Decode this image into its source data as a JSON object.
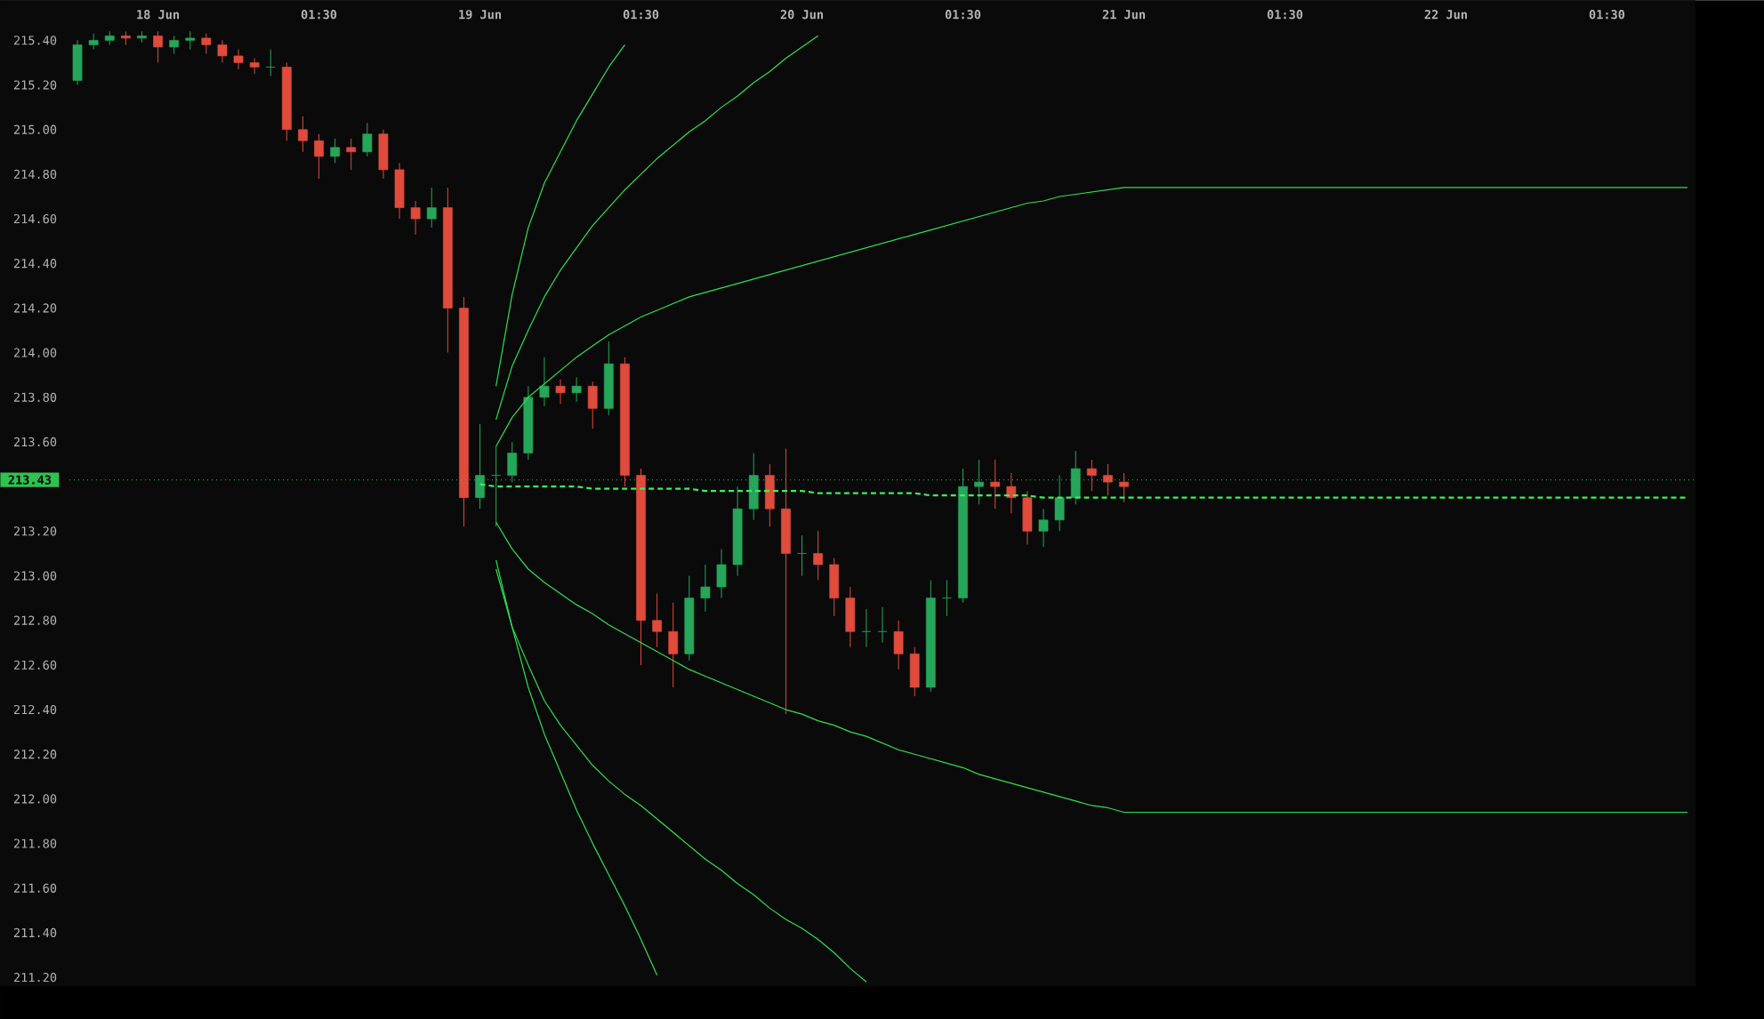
{
  "chart_data": {
    "type": "candlestick",
    "categories": [
      null,
      null,
      null,
      null,
      null,
      "18 Jun",
      null,
      null,
      null,
      null,
      null,
      null,
      null,
      null,
      null,
      "01:30",
      null,
      null,
      null,
      null,
      null,
      null,
      null,
      null,
      null,
      "19 Jun",
      null,
      null,
      null,
      null,
      null,
      null,
      null,
      null,
      null,
      "01:30",
      null,
      null,
      null,
      null,
      null,
      null,
      null,
      null,
      null,
      "20 Jun",
      null,
      null,
      null,
      null,
      null,
      null,
      null,
      null,
      null,
      "01:30",
      null,
      null,
      null,
      null,
      null,
      null,
      null,
      null,
      null,
      "21 Jun",
      null,
      null,
      null,
      null,
      null,
      null,
      null,
      null,
      null,
      "01:30",
      null,
      null,
      null,
      null,
      null,
      null,
      null,
      null,
      null,
      "22 Jun",
      null,
      null,
      null,
      null,
      null,
      null,
      null,
      null,
      null,
      "01:30",
      null,
      null,
      null,
      null,
      null
    ],
    "ohlc": [
      [
        215.22,
        215.4,
        215.2,
        215.38
      ],
      [
        215.38,
        215.43,
        215.36,
        215.4
      ],
      [
        215.4,
        215.44,
        215.38,
        215.42
      ],
      [
        215.42,
        215.44,
        215.38,
        215.41
      ],
      [
        215.41,
        215.44,
        215.39,
        215.42
      ],
      [
        215.42,
        215.44,
        215.3,
        215.37
      ],
      [
        215.37,
        215.42,
        215.34,
        215.4
      ],
      [
        215.4,
        215.44,
        215.36,
        215.41
      ],
      [
        215.41,
        215.43,
        215.34,
        215.38
      ],
      [
        215.38,
        215.4,
        215.3,
        215.33
      ],
      [
        215.33,
        215.36,
        215.27,
        215.3
      ],
      [
        215.3,
        215.32,
        215.25,
        215.28
      ],
      [
        215.28,
        215.36,
        215.24,
        215.28
      ],
      [
        215.28,
        215.3,
        214.95,
        215.0
      ],
      [
        215.0,
        215.06,
        214.9,
        214.95
      ],
      [
        214.95,
        214.98,
        214.78,
        214.88
      ],
      [
        214.88,
        214.96,
        214.85,
        214.92
      ],
      [
        214.92,
        214.96,
        214.82,
        214.9
      ],
      [
        214.9,
        215.03,
        214.88,
        214.98
      ],
      [
        214.98,
        215.0,
        214.78,
        214.82
      ],
      [
        214.82,
        214.85,
        214.6,
        214.65
      ],
      [
        214.65,
        214.68,
        214.53,
        214.6
      ],
      [
        214.6,
        214.74,
        214.56,
        214.65
      ],
      [
        214.65,
        214.74,
        214.0,
        214.2
      ],
      [
        214.2,
        214.25,
        213.22,
        213.35
      ],
      [
        213.35,
        213.68,
        213.3,
        213.45
      ],
      [
        213.45,
        213.58,
        213.22,
        213.45
      ],
      [
        213.45,
        213.6,
        213.42,
        213.55
      ],
      [
        213.55,
        213.85,
        213.52,
        213.8
      ],
      [
        213.8,
        213.98,
        213.76,
        213.85
      ],
      [
        213.85,
        213.88,
        213.77,
        213.82
      ],
      [
        213.82,
        213.89,
        213.78,
        213.85
      ],
      [
        213.85,
        213.87,
        213.66,
        213.75
      ],
      [
        213.75,
        214.05,
        213.72,
        213.95
      ],
      [
        213.95,
        213.98,
        213.4,
        213.45
      ],
      [
        213.45,
        213.48,
        212.6,
        212.8
      ],
      [
        212.8,
        212.92,
        212.68,
        212.75
      ],
      [
        212.75,
        212.88,
        212.5,
        212.65
      ],
      [
        212.65,
        213.0,
        212.62,
        212.9
      ],
      [
        212.9,
        213.05,
        212.84,
        212.95
      ],
      [
        212.95,
        213.12,
        212.9,
        213.05
      ],
      [
        213.05,
        213.4,
        213.0,
        213.3
      ],
      [
        213.3,
        213.55,
        213.25,
        213.45
      ],
      [
        213.45,
        213.5,
        213.22,
        213.3
      ],
      [
        213.3,
        213.57,
        212.38,
        213.1
      ],
      [
        213.1,
        213.18,
        213.0,
        213.1
      ],
      [
        213.1,
        213.2,
        212.98,
        213.05
      ],
      [
        213.05,
        213.08,
        212.82,
        212.9
      ],
      [
        212.9,
        212.95,
        212.68,
        212.75
      ],
      [
        212.75,
        212.85,
        212.68,
        212.75
      ],
      [
        212.75,
        212.86,
        212.7,
        212.75
      ],
      [
        212.75,
        212.8,
        212.58,
        212.65
      ],
      [
        212.65,
        212.68,
        212.46,
        212.5
      ],
      [
        212.5,
        212.98,
        212.48,
        212.9
      ],
      [
        212.9,
        212.98,
        212.82,
        212.9
      ],
      [
        212.9,
        213.48,
        212.88,
        213.4
      ],
      [
        213.4,
        213.52,
        213.32,
        213.42
      ],
      [
        213.42,
        213.52,
        213.3,
        213.4
      ],
      [
        213.4,
        213.46,
        213.28,
        213.35
      ],
      [
        213.35,
        213.38,
        213.14,
        213.2
      ],
      [
        213.2,
        213.3,
        213.13,
        213.25
      ],
      [
        213.25,
        213.45,
        213.2,
        213.35
      ],
      [
        213.35,
        213.56,
        213.32,
        213.48
      ],
      [
        213.48,
        213.52,
        213.38,
        213.45
      ],
      [
        213.45,
        213.5,
        213.36,
        213.42
      ],
      [
        213.42,
        213.46,
        213.33,
        213.4
      ],
      null,
      null,
      null,
      null,
      null,
      null,
      null,
      null,
      null,
      null,
      null,
      null,
      null,
      null,
      null,
      null,
      null,
      null,
      null,
      null,
      null,
      null,
      null,
      null,
      null,
      null,
      null,
      null,
      null,
      null,
      null,
      null,
      null,
      null,
      null
    ],
    "colors": [
      "#26a65b",
      "#26a65b",
      "#26a65b",
      "#e04b3c",
      "#26a65b",
      "#e04b3c",
      "#26a65b",
      "#26a65b",
      "#e04b3c",
      "#e04b3c",
      "#e04b3c",
      "#e04b3c",
      "#26a65b",
      "#e04b3c",
      "#e04b3c",
      "#e04b3c",
      "#26a65b",
      "#e04b3c",
      "#26a65b",
      "#e04b3c",
      "#e04b3c",
      "#e04b3c",
      "#26a65b",
      "#e04b3c",
      "#e04b3c",
      "#26a65b",
      "#26a65b",
      "#26a65b",
      "#26a65b",
      "#26a65b",
      "#e04b3c",
      "#26a65b",
      "#e04b3c",
      "#26a65b",
      "#e04b3c",
      "#e04b3c",
      "#e04b3c",
      "#e04b3c",
      "#26a65b",
      "#26a65b",
      "#26a65b",
      "#26a65b",
      "#26a65b",
      "#e04b3c",
      "#e04b3c",
      "#26a65b",
      "#e04b3c",
      "#e04b3c",
      "#e04b3c",
      "#26a65b",
      "#26a65b",
      "#e04b3c",
      "#e04b3c",
      "#26a65b",
      "#26a65b",
      "#26a65b",
      "#26a65b",
      "#e04b3c",
      "#e04b3c",
      "#e04b3c",
      "#26a65b",
      "#26a65b",
      "#26a65b",
      "#e04b3c",
      "#e04b3c",
      "#e04b3c",
      null,
      null,
      null,
      null,
      null,
      null,
      null,
      null,
      null,
      null,
      null,
      null,
      null,
      null,
      null,
      null,
      null,
      null,
      null,
      null,
      null,
      null,
      null,
      null,
      null,
      null,
      null,
      null,
      null,
      null,
      null,
      null,
      null,
      null,
      null
    ],
    "series": [
      {
        "type": "line",
        "color": "#2fe04f",
        "line_style": "solid",
        "values": [
          null,
          null,
          null,
          null,
          null,
          null,
          null,
          null,
          null,
          null,
          null,
          null,
          null,
          null,
          null,
          null,
          null,
          null,
          null,
          null,
          null,
          null,
          null,
          null,
          null,
          null,
          213.85,
          214.26,
          214.56,
          214.76,
          214.9,
          215.04,
          215.16,
          215.28,
          215.38,
          null,
          null,
          null,
          null,
          null,
          null,
          null,
          null,
          null,
          null,
          null,
          null,
          null,
          null,
          null,
          null,
          null,
          null,
          null,
          null,
          null,
          null,
          null,
          null,
          null,
          null,
          null,
          null,
          null,
          null,
          null,
          null,
          null,
          null,
          null,
          null,
          null,
          null,
          null,
          null,
          null,
          null,
          null,
          null,
          null,
          null,
          null,
          null,
          null,
          null,
          null,
          null,
          null,
          null,
          null,
          null,
          null,
          null,
          null,
          null,
          null,
          null,
          null,
          null,
          null,
          null
        ]
      },
      {
        "type": "line",
        "color": "#2fe04f",
        "line_style": "solid",
        "values": [
          null,
          null,
          null,
          null,
          null,
          null,
          null,
          null,
          null,
          null,
          null,
          null,
          null,
          null,
          null,
          null,
          null,
          null,
          null,
          null,
          null,
          null,
          null,
          null,
          null,
          null,
          213.7,
          213.94,
          214.1,
          214.25,
          214.37,
          214.47,
          214.57,
          214.65,
          214.73,
          214.8,
          214.87,
          214.93,
          214.99,
          215.04,
          215.1,
          215.15,
          215.21,
          215.26,
          215.32,
          215.37,
          215.42,
          null,
          null,
          null,
          null,
          null,
          null,
          null,
          null,
          null,
          null,
          null,
          null,
          null,
          null,
          null,
          null,
          null,
          null,
          null,
          null,
          null,
          null,
          null,
          null,
          null,
          null,
          null,
          null,
          null,
          null,
          null,
          null,
          null,
          null,
          null,
          null,
          null,
          null,
          null,
          null,
          null,
          null,
          null,
          null,
          null,
          null,
          null,
          null,
          null,
          null,
          null,
          null,
          null,
          null
        ]
      },
      {
        "type": "line",
        "color": "#2fe04f",
        "line_style": "solid",
        "values": [
          null,
          null,
          null,
          null,
          null,
          null,
          null,
          null,
          null,
          null,
          null,
          null,
          null,
          null,
          null,
          null,
          null,
          null,
          null,
          null,
          null,
          null,
          null,
          null,
          null,
          null,
          213.58,
          213.71,
          213.8,
          213.86,
          213.92,
          213.98,
          214.03,
          214.08,
          214.12,
          214.16,
          214.19,
          214.22,
          214.25,
          214.27,
          214.29,
          214.31,
          214.33,
          214.35,
          214.37,
          214.39,
          214.41,
          214.43,
          214.45,
          214.47,
          214.49,
          214.51,
          214.53,
          214.55,
          214.57,
          214.59,
          214.61,
          214.63,
          214.65,
          214.67,
          214.68,
          214.7,
          214.71,
          214.72,
          214.73,
          214.74,
          214.74,
          214.74,
          214.74,
          214.74,
          214.74,
          214.74,
          214.74,
          214.74,
          214.74,
          214.74,
          214.74,
          214.74,
          214.74,
          214.74,
          214.74,
          214.74,
          214.74,
          214.74,
          214.74,
          214.74,
          214.74,
          214.74,
          214.74,
          214.74,
          214.74,
          214.74,
          214.74,
          214.74,
          214.74,
          214.74,
          214.74,
          214.74,
          214.74,
          214.74,
          214.74
        ]
      },
      {
        "type": "line",
        "color": "#2fe04f",
        "line_style": "solid",
        "values": [
          null,
          null,
          null,
          null,
          null,
          null,
          null,
          null,
          null,
          null,
          null,
          null,
          null,
          null,
          null,
          null,
          null,
          null,
          null,
          null,
          null,
          null,
          null,
          null,
          null,
          null,
          213.24,
          213.12,
          213.03,
          212.97,
          212.92,
          212.87,
          212.83,
          212.78,
          212.74,
          212.7,
          212.66,
          212.62,
          212.58,
          212.55,
          212.52,
          212.49,
          212.46,
          212.43,
          212.4,
          212.38,
          212.35,
          212.33,
          212.3,
          212.28,
          212.25,
          212.22,
          212.2,
          212.18,
          212.16,
          212.14,
          212.11,
          212.09,
          212.07,
          212.05,
          212.03,
          212.01,
          211.99,
          211.97,
          211.96,
          211.94,
          211.94,
          211.94,
          211.94,
          211.94,
          211.94,
          211.94,
          211.94,
          211.94,
          211.94,
          211.94,
          211.94,
          211.94,
          211.94,
          211.94,
          211.94,
          211.94,
          211.94,
          211.94,
          211.94,
          211.94,
          211.94,
          211.94,
          211.94,
          211.94,
          211.94,
          211.94,
          211.94,
          211.94,
          211.94,
          211.94,
          211.94,
          211.94,
          211.94,
          211.94,
          211.94
        ]
      },
      {
        "type": "line",
        "color": "#2fe04f",
        "line_style": "solid",
        "values": [
          null,
          null,
          null,
          null,
          null,
          null,
          null,
          null,
          null,
          null,
          null,
          null,
          null,
          null,
          null,
          null,
          null,
          null,
          null,
          null,
          null,
          null,
          null,
          null,
          null,
          null,
          213.07,
          212.77,
          212.6,
          212.44,
          212.33,
          212.24,
          212.15,
          212.08,
          212.02,
          211.97,
          211.91,
          211.85,
          211.79,
          211.73,
          211.68,
          211.62,
          211.57,
          211.51,
          211.46,
          211.42,
          211.37,
          211.31,
          211.24,
          211.18,
          null,
          null,
          null,
          null,
          null,
          null,
          null,
          null,
          null,
          null,
          null,
          null,
          null,
          null,
          null,
          null,
          null,
          null,
          null,
          null,
          null,
          null,
          null,
          null,
          null,
          null,
          null,
          null,
          null,
          null,
          null,
          null,
          null,
          null,
          null,
          null,
          null,
          null,
          null,
          null,
          null,
          null,
          null,
          null,
          null,
          null,
          null,
          null,
          null,
          null,
          null
        ]
      },
      {
        "type": "line",
        "color": "#2fe04f",
        "line_style": "solid",
        "values": [
          null,
          null,
          null,
          null,
          null,
          null,
          null,
          null,
          null,
          null,
          null,
          null,
          null,
          null,
          null,
          null,
          null,
          null,
          null,
          null,
          null,
          null,
          null,
          null,
          null,
          null,
          213.03,
          212.77,
          212.5,
          212.29,
          212.12,
          211.95,
          211.8,
          211.66,
          211.52,
          211.37,
          211.21,
          null,
          null,
          null,
          null,
          null,
          null,
          null,
          null,
          null,
          null,
          null,
          null,
          null,
          null,
          null,
          null,
          null,
          null,
          null,
          null,
          null,
          null,
          null,
          null,
          null,
          null,
          null,
          null,
          null,
          null,
          null,
          null,
          null,
          null,
          null,
          null,
          null,
          null,
          null,
          null,
          null,
          null,
          null,
          null,
          null,
          null,
          null,
          null,
          null,
          null,
          null,
          null,
          null,
          null,
          null,
          null,
          null,
          null,
          null,
          null,
          null,
          null,
          null,
          null
        ]
      },
      {
        "type": "line",
        "color": "#3cf05c",
        "line_style": "dashed",
        "values": [
          null,
          null,
          null,
          null,
          null,
          null,
          null,
          null,
          null,
          null,
          null,
          null,
          null,
          null,
          null,
          null,
          null,
          null,
          null,
          null,
          null,
          null,
          null,
          null,
          null,
          213.41,
          213.4,
          213.4,
          213.4,
          213.4,
          213.4,
          213.4,
          213.39,
          213.39,
          213.39,
          213.39,
          213.39,
          213.39,
          213.39,
          213.38,
          213.38,
          213.38,
          213.38,
          213.38,
          213.38,
          213.38,
          213.37,
          213.37,
          213.37,
          213.37,
          213.37,
          213.37,
          213.37,
          213.36,
          213.36,
          213.36,
          213.36,
          213.36,
          213.36,
          213.36,
          213.35,
          213.35,
          213.35,
          213.35,
          213.35,
          213.35,
          213.35,
          213.35,
          213.35,
          213.35,
          213.35,
          213.35,
          213.35,
          213.35,
          213.35,
          213.35,
          213.35,
          213.35,
          213.35,
          213.35,
          213.35,
          213.35,
          213.35,
          213.35,
          213.35,
          213.35,
          213.35,
          213.35,
          213.35,
          213.35,
          213.35,
          213.35,
          213.35,
          213.35,
          213.35,
          213.35,
          213.35,
          213.35,
          213.35,
          213.35,
          213.35
        ]
      }
    ],
    "ref_lines": [
      {
        "axis": "y",
        "value": 213.43,
        "label": "213.43",
        "color": "#2ec24f",
        "line_style": "dotted"
      }
    ],
    "ylim": [
      211.16,
      215.58
    ],
    "yticks": [
      {
        "value": 211.2,
        "label": "211.20"
      },
      {
        "value": 211.4,
        "label": "211.40"
      },
      {
        "value": 211.6,
        "label": "211.60"
      },
      {
        "value": 211.8,
        "label": "211.80"
      },
      {
        "value": 212.0,
        "label": "212.00"
      },
      {
        "value": 212.2,
        "label": "212.20"
      },
      {
        "value": 212.4,
        "label": "212.40"
      },
      {
        "value": 212.6,
        "label": "212.60"
      },
      {
        "value": 212.8,
        "label": "212.80"
      },
      {
        "value": 213.0,
        "label": "213.00"
      },
      {
        "value": 213.2,
        "label": "213.20"
      },
      {
        "value": 213.6,
        "label": "213.60"
      },
      {
        "value": 213.8,
        "label": "213.80"
      },
      {
        "value": 214.0,
        "label": "214.00"
      },
      {
        "value": 214.2,
        "label": "214.20"
      },
      {
        "value": 214.4,
        "label": "214.40"
      },
      {
        "value": 214.6,
        "label": "214.60"
      },
      {
        "value": 214.8,
        "label": "214.80"
      },
      {
        "value": 215.0,
        "label": "215.00"
      },
      {
        "value": 215.2,
        "label": "215.20"
      },
      {
        "value": 215.4,
        "label": "215.40"
      }
    ]
  }
}
